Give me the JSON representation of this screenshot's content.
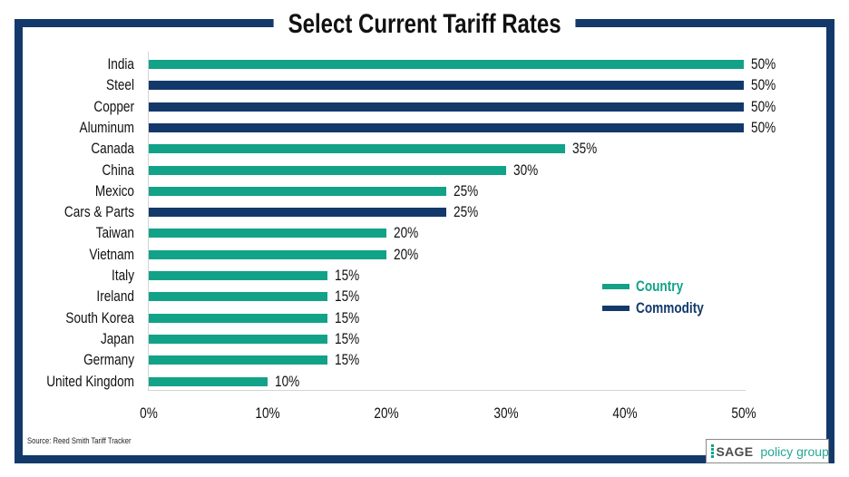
{
  "title": "Select Current Tariff Rates",
  "source": "Source: Reed Smith Tariff Tracker",
  "logo": {
    "brand": "SAGE",
    "suffix": "policy group"
  },
  "colors": {
    "country": "#12A287",
    "commodity": "#13396B",
    "frame": "#13396B",
    "axis_line": "#D4D4D4",
    "logo_brand_text": "#4D4D4F",
    "logo_suffix_text": "#25A896"
  },
  "legend": [
    {
      "label": "Country",
      "type": "country",
      "color": "#12A287"
    },
    {
      "label": "Commodity",
      "type": "commodity",
      "color": "#13396B"
    }
  ],
  "chart_data": {
    "type": "bar",
    "orientation": "horizontal",
    "title": "Select Current Tariff Rates",
    "xlabel": "",
    "ylabel": "",
    "xlim": [
      0,
      50
    ],
    "grid": false,
    "legend_position": "right-middle",
    "x_ticks": [
      "0%",
      "10%",
      "20%",
      "30%",
      "40%",
      "50%"
    ],
    "x_tick_values": [
      0,
      10,
      20,
      30,
      40,
      50
    ],
    "bars": [
      {
        "label": "India",
        "value": 50,
        "value_label": "50%",
        "type": "country"
      },
      {
        "label": "Steel",
        "value": 50,
        "value_label": "50%",
        "type": "commodity"
      },
      {
        "label": "Copper",
        "value": 50,
        "value_label": "50%",
        "type": "commodity"
      },
      {
        "label": "Aluminum",
        "value": 50,
        "value_label": "50%",
        "type": "commodity"
      },
      {
        "label": "Canada",
        "value": 35,
        "value_label": "35%",
        "type": "country"
      },
      {
        "label": "China",
        "value": 30,
        "value_label": "30%",
        "type": "country"
      },
      {
        "label": "Mexico",
        "value": 25,
        "value_label": "25%",
        "type": "country"
      },
      {
        "label": "Cars & Parts",
        "value": 25,
        "value_label": "25%",
        "type": "commodity"
      },
      {
        "label": "Taiwan",
        "value": 20,
        "value_label": "20%",
        "type": "country"
      },
      {
        "label": "Vietnam",
        "value": 20,
        "value_label": "20%",
        "type": "country"
      },
      {
        "label": "Italy",
        "value": 15,
        "value_label": "15%",
        "type": "country"
      },
      {
        "label": "Ireland",
        "value": 15,
        "value_label": "15%",
        "type": "country"
      },
      {
        "label": "South Korea",
        "value": 15,
        "value_label": "15%",
        "type": "country"
      },
      {
        "label": "Japan",
        "value": 15,
        "value_label": "15%",
        "type": "country"
      },
      {
        "label": "Germany",
        "value": 15,
        "value_label": "15%",
        "type": "country"
      },
      {
        "label": "United Kingdom",
        "value": 10,
        "value_label": "10%",
        "type": "country"
      }
    ]
  }
}
